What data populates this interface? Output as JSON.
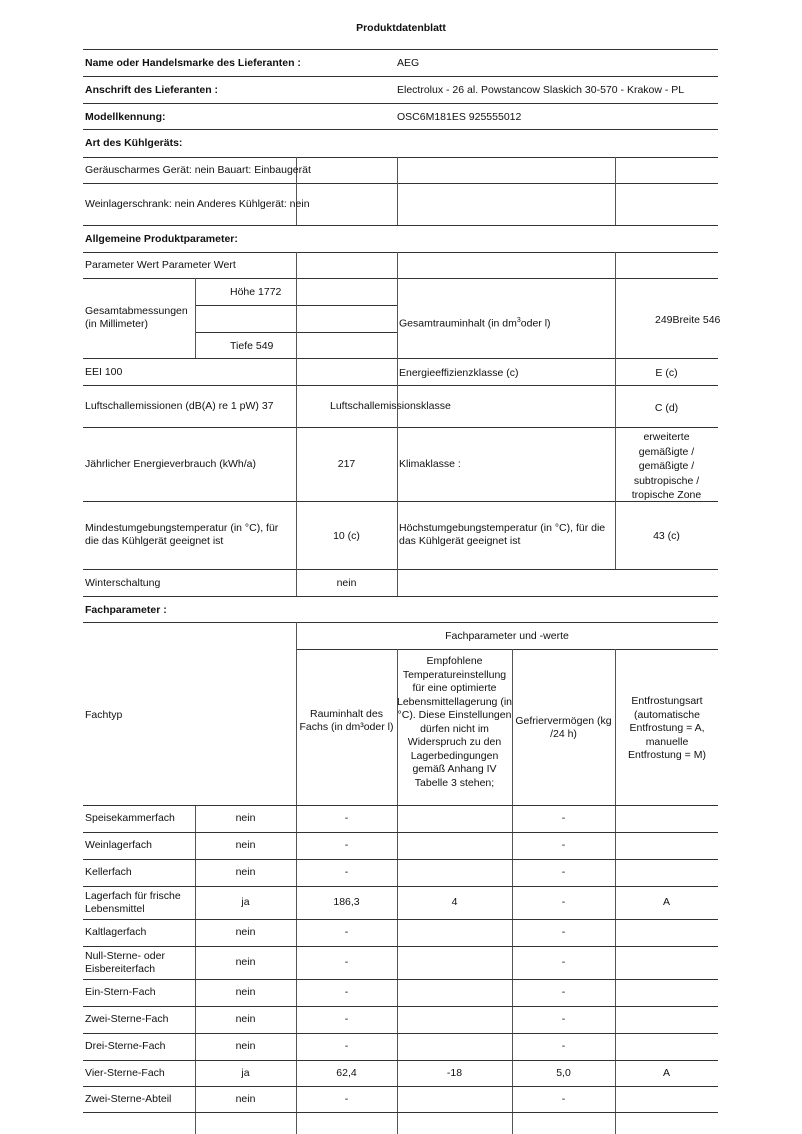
{
  "title": "Produktdatenblatt",
  "supplier": {
    "name_label": "Name oder Handelsmarke des Lieferanten :",
    "name_value": "AEG",
    "address_label": "Anschrift des Lieferanten :",
    "address_value": "Electrolux - 26 al. Powstancow Slaskich 30-570 - Krakow - PL",
    "model_label": "Modellkennung:",
    "model_value": "OSC6M181ES 925555012"
  },
  "type": {
    "heading": "Art des Kühlgeräts:",
    "row1": "Geräuscharmes Gerät: nein Bauart: Einbaugerät",
    "row2": "Weinlagerschrank: nein Anderes Kühlgerät: nein"
  },
  "general": {
    "heading": "Allgemeine Produktparameter:",
    "header_row": "Parameter Wert Parameter Wert",
    "dimensions_label": "Gesamtabmessungen (in Millimeter)",
    "height": "Höhe 1772",
    "depth": "Tiefe 549",
    "total_volume_label": "Gesamtrauminhalt (in dm",
    "total_volume_label_sup": "3",
    "total_volume_label_end": "oder l)",
    "total_volume_value": "249Breite 546",
    "eei": "EEI 100",
    "energy_class_label": "Energieeffizienzklasse (c)",
    "energy_class_value": "E (c)",
    "noise_label": "Luftschallemissionen (dB(A) re 1 pW) 37",
    "noise_class_label": "Luftschallemissionsklasse",
    "noise_class_value": "C (d)",
    "annual_energy_label": "Jährlicher Energieverbrauch (kWh/a)",
    "annual_energy_value": "217",
    "climate_label": "Klimaklasse :",
    "climate_value": "erweiterte gemäßigte / gemäßigte / subtropische / tropische Zone",
    "min_temp_label": "Mindestumgebungstemperatur (in °C), für die das Kühlgerät geeignet ist",
    "min_temp_value": "10 (c)",
    "max_temp_label": "Höchstumgebungstemperatur (in °C), für die das Kühlgerät geeignet ist",
    "max_temp_value": "43 (c)",
    "winter_label": "Winterschaltung",
    "winter_value": "nein"
  },
  "compartments": {
    "heading": "Fachparameter :",
    "group_header": "Fachparameter und -werte",
    "type_header": "Fachtyp",
    "col_volume": "Rauminhalt des Fachs (in dm³oder l)",
    "col_temp": "Empfohlene Temperatureinstellung für eine optimierte Lebensmittellagerung (in °C). Diese Einstellungen dürfen nicht im Widerspruch zu den Lagerbedingungen gemäß Anhang IV Tabelle 3 stehen;",
    "col_freeze": "Gefriervermögen (kg /24 h)",
    "col_defrost": "Entfrostungsart (automatische Entfrostung = A, manuelle Entfrostung = M)",
    "rows": [
      {
        "name": "Speisekammerfach",
        "present": "nein",
        "volume": "-",
        "temp": "",
        "freeze": "-",
        "defrost": ""
      },
      {
        "name": "Weinlagerfach",
        "present": "nein",
        "volume": "-",
        "temp": "",
        "freeze": "-",
        "defrost": ""
      },
      {
        "name": "Kellerfach",
        "present": "nein",
        "volume": "-",
        "temp": "",
        "freeze": "-",
        "defrost": ""
      },
      {
        "name": "Lagerfach für frische Lebensmittel",
        "present": "ja",
        "volume": "186,3",
        "temp": "4",
        "freeze": "-",
        "defrost": "A"
      },
      {
        "name": "Kaltlagerfach",
        "present": "nein",
        "volume": "-",
        "temp": "",
        "freeze": "-",
        "defrost": ""
      },
      {
        "name": "Null-Sterne- oder Eisbereiterfach",
        "present": "nein",
        "volume": "-",
        "temp": "",
        "freeze": "-",
        "defrost": ""
      },
      {
        "name": "Ein-Stern-Fach",
        "present": "nein",
        "volume": "-",
        "temp": "",
        "freeze": "-",
        "defrost": ""
      },
      {
        "name": "Zwei-Sterne-Fach",
        "present": "nein",
        "volume": "-",
        "temp": "",
        "freeze": "-",
        "defrost": ""
      },
      {
        "name": "Drei-Sterne-Fach",
        "present": "nein",
        "volume": "-",
        "temp": "",
        "freeze": "-",
        "defrost": ""
      },
      {
        "name": "Vier-Sterne-Fach",
        "present": "ja",
        "volume": "62,4",
        "temp": "-18",
        "freeze": "5,0",
        "defrost": "A"
      },
      {
        "name": "Zwei-Sterne-Abteil",
        "present": "nein",
        "volume": "-",
        "temp": "",
        "freeze": "-",
        "defrost": ""
      }
    ]
  }
}
